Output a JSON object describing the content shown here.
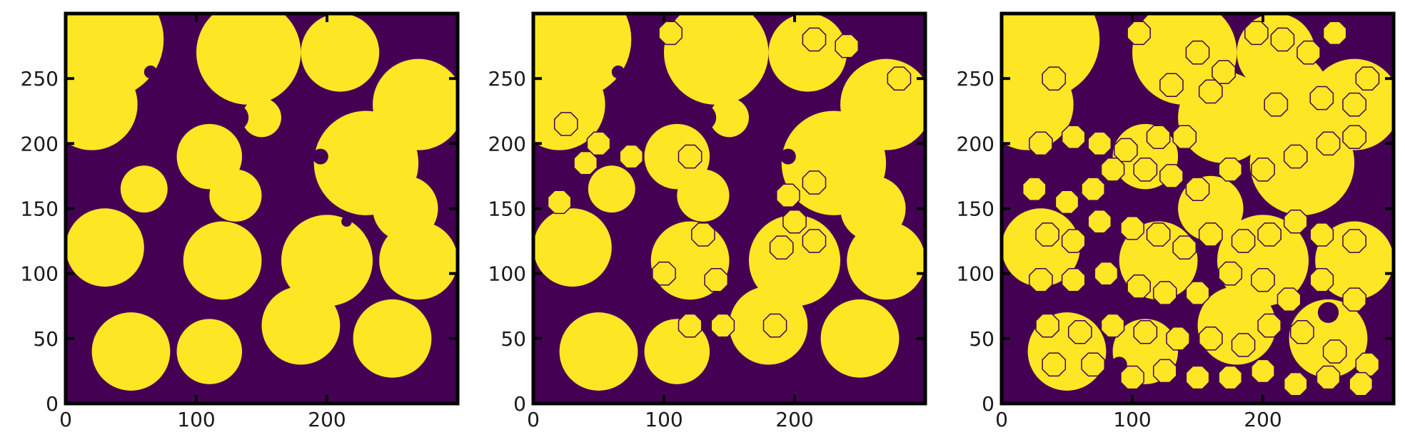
{
  "colors": {
    "background": "#440154",
    "foreground": "#fde725",
    "axis": "#000000",
    "text": "#1a1a1a"
  },
  "chart_data": [
    {
      "type": "heatmap",
      "title": "",
      "xlabel": "",
      "ylabel": "",
      "xlim": [
        0,
        300
      ],
      "ylim": [
        0,
        300
      ],
      "xticks": [
        0,
        100,
        200
      ],
      "yticks": [
        0,
        50,
        100,
        150,
        200,
        250
      ],
      "grid": false,
      "values": "binary field (0 = dark purple, 1 = yellow)",
      "blobs": [
        [
          30,
          280,
          45
        ],
        [
          20,
          230,
          35
        ],
        [
          140,
          270,
          40
        ],
        [
          210,
          270,
          30
        ],
        [
          270,
          230,
          35
        ],
        [
          110,
          190,
          25
        ],
        [
          230,
          185,
          40
        ],
        [
          30,
          120,
          30
        ],
        [
          120,
          110,
          30
        ],
        [
          200,
          110,
          35
        ],
        [
          270,
          110,
          30
        ],
        [
          50,
          40,
          30
        ],
        [
          110,
          40,
          25
        ],
        [
          180,
          60,
          30
        ],
        [
          250,
          50,
          30
        ],
        [
          130,
          160,
          20
        ],
        [
          60,
          165,
          18
        ],
        [
          150,
          220,
          15
        ],
        [
          260,
          150,
          25
        ]
      ],
      "holes": [
        [
          130,
          220,
          10
        ],
        [
          195,
          190,
          6
        ],
        [
          65,
          255,
          5
        ],
        [
          215,
          140,
          4
        ]
      ],
      "disks": []
    },
    {
      "type": "heatmap",
      "title": "",
      "xlabel": "",
      "ylabel": "",
      "xlim": [
        0,
        300
      ],
      "ylim": [
        0,
        300
      ],
      "xticks": [
        0,
        100,
        200
      ],
      "yticks": [
        0,
        50,
        100,
        150,
        200,
        250
      ],
      "grid": false,
      "values": "binary field (0 = dark purple, 1 = yellow)",
      "blobs": [
        [
          30,
          280,
          45
        ],
        [
          20,
          230,
          35
        ],
        [
          140,
          270,
          40
        ],
        [
          210,
          270,
          30
        ],
        [
          270,
          230,
          35
        ],
        [
          110,
          190,
          25
        ],
        [
          230,
          185,
          40
        ],
        [
          30,
          120,
          30
        ],
        [
          120,
          110,
          30
        ],
        [
          200,
          110,
          35
        ],
        [
          270,
          110,
          30
        ],
        [
          50,
          40,
          30
        ],
        [
          110,
          40,
          25
        ],
        [
          180,
          60,
          30
        ],
        [
          250,
          50,
          30
        ],
        [
          130,
          160,
          20
        ],
        [
          60,
          165,
          18
        ],
        [
          150,
          220,
          15
        ],
        [
          260,
          150,
          25
        ]
      ],
      "holes": [
        [
          130,
          220,
          10
        ],
        [
          195,
          190,
          6
        ],
        [
          65,
          255,
          5
        ]
      ],
      "disks": [
        [
          25,
          215
        ],
        [
          50,
          200
        ],
        [
          40,
          185
        ],
        [
          75,
          190
        ],
        [
          120,
          190
        ],
        [
          20,
          155
        ],
        [
          195,
          160
        ],
        [
          215,
          170
        ],
        [
          200,
          140
        ],
        [
          215,
          125
        ],
        [
          100,
          100
        ],
        [
          140,
          95
        ],
        [
          120,
          60
        ],
        [
          145,
          60
        ],
        [
          185,
          60
        ],
        [
          105,
          285
        ],
        [
          215,
          280
        ],
        [
          240,
          275
        ],
        [
          280,
          250
        ],
        [
          190,
          120
        ],
        [
          130,
          130
        ]
      ]
    },
    {
      "type": "heatmap",
      "title": "",
      "xlabel": "",
      "ylabel": "",
      "xlim": [
        0,
        300
      ],
      "ylim": [
        0,
        300
      ],
      "xticks": [
        0,
        100,
        200
      ],
      "yticks": [
        0,
        50,
        100,
        150,
        200,
        250
      ],
      "grid": false,
      "values": "binary field (0 = dark purple, 1 = yellow)",
      "blobs": [
        [
          30,
          280,
          45
        ],
        [
          20,
          230,
          35
        ],
        [
          140,
          270,
          40
        ],
        [
          210,
          270,
          30
        ],
        [
          270,
          230,
          35
        ],
        [
          110,
          190,
          25
        ],
        [
          230,
          185,
          40
        ],
        [
          30,
          120,
          30
        ],
        [
          120,
          110,
          30
        ],
        [
          200,
          110,
          35
        ],
        [
          270,
          110,
          30
        ],
        [
          50,
          40,
          30
        ],
        [
          110,
          40,
          25
        ],
        [
          180,
          60,
          30
        ],
        [
          250,
          50,
          30
        ],
        [
          170,
          220,
          35
        ],
        [
          220,
          240,
          30
        ],
        [
          160,
          150,
          25
        ]
      ],
      "holes": [
        [
          250,
          70,
          8
        ],
        [
          90,
          30,
          6
        ]
      ],
      "disks": [
        [
          30,
          200
        ],
        [
          55,
          205
        ],
        [
          75,
          200
        ],
        [
          95,
          195
        ],
        [
          120,
          205
        ],
        [
          140,
          205
        ],
        [
          25,
          165
        ],
        [
          50,
          155
        ],
        [
          70,
          165
        ],
        [
          85,
          180
        ],
        [
          110,
          180
        ],
        [
          130,
          175
        ],
        [
          150,
          165
        ],
        [
          175,
          180
        ],
        [
          200,
          180
        ],
        [
          225,
          190
        ],
        [
          250,
          200
        ],
        [
          270,
          205
        ],
        [
          35,
          130
        ],
        [
          55,
          125
        ],
        [
          75,
          140
        ],
        [
          100,
          135
        ],
        [
          120,
          130
        ],
        [
          140,
          120
        ],
        [
          160,
          130
        ],
        [
          185,
          125
        ],
        [
          205,
          130
        ],
        [
          225,
          140
        ],
        [
          245,
          130
        ],
        [
          270,
          125
        ],
        [
          30,
          95
        ],
        [
          55,
          95
        ],
        [
          80,
          100
        ],
        [
          105,
          90
        ],
        [
          125,
          85
        ],
        [
          150,
          85
        ],
        [
          175,
          100
        ],
        [
          200,
          95
        ],
        [
          220,
          80
        ],
        [
          245,
          95
        ],
        [
          270,
          80
        ],
        [
          35,
          60
        ],
        [
          60,
          55
        ],
        [
          85,
          60
        ],
        [
          110,
          55
        ],
        [
          135,
          50
        ],
        [
          160,
          50
        ],
        [
          185,
          45
        ],
        [
          205,
          60
        ],
        [
          230,
          55
        ],
        [
          255,
          40
        ],
        [
          280,
          30
        ],
        [
          40,
          30
        ],
        [
          70,
          30
        ],
        [
          100,
          20
        ],
        [
          125,
          25
        ],
        [
          150,
          20
        ],
        [
          175,
          20
        ],
        [
          200,
          25
        ],
        [
          225,
          15
        ],
        [
          250,
          20
        ],
        [
          275,
          15
        ],
        [
          105,
          285
        ],
        [
          150,
          270
        ],
        [
          170,
          255
        ],
        [
          195,
          285
        ],
        [
          215,
          280
        ],
        [
          235,
          270
        ],
        [
          255,
          285
        ],
        [
          280,
          250
        ],
        [
          40,
          250
        ],
        [
          130,
          245
        ],
        [
          160,
          240
        ],
        [
          210,
          230
        ],
        [
          245,
          235
        ],
        [
          270,
          230
        ]
      ]
    }
  ]
}
